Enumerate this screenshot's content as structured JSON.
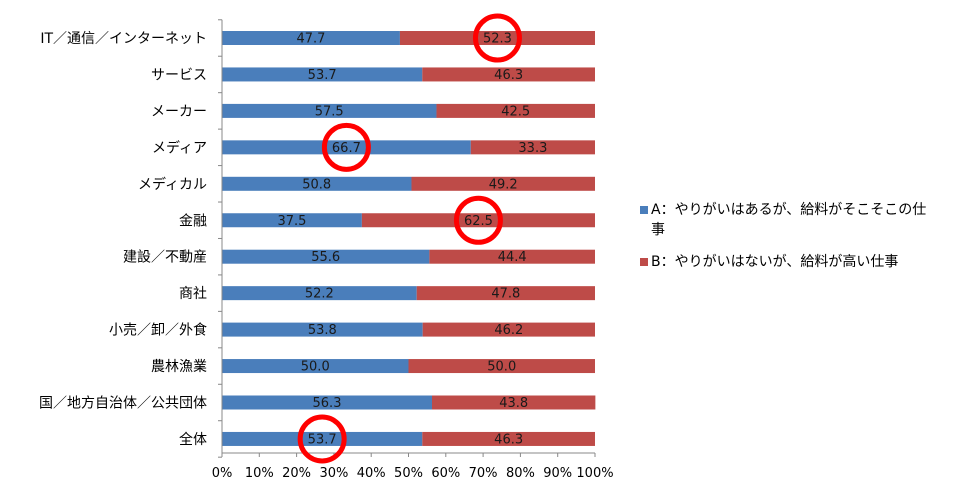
{
  "chart_data": {
    "type": "bar",
    "orientation": "horizontal",
    "stacked": "100%",
    "categories": [
      "IT／通信／インターネット",
      "サービス",
      "メーカー",
      "メディア",
      "メディカル",
      "金融",
      "建設／不動産",
      "商社",
      "小売／卸／外食",
      "農林漁業",
      "国／地方自治体／公共団体",
      "全体"
    ],
    "series": [
      {
        "name": "A：やりがいはあるが、給料がそこそこの仕事",
        "color": "#4a7ebb",
        "values": [
          47.7,
          53.7,
          57.5,
          66.7,
          50.8,
          37.5,
          55.6,
          52.2,
          53.8,
          50.0,
          56.3,
          53.7
        ],
        "labels": [
          "47.7",
          "53.7",
          "57.5",
          "66.7",
          "50.8",
          "37.5",
          "55.6",
          "52.2",
          "53.8",
          "50.0",
          "56.3",
          "53.7"
        ]
      },
      {
        "name": "B：やりがいはないが、給料が高い仕事",
        "color": "#be4b48",
        "values": [
          52.3,
          46.3,
          42.5,
          33.3,
          49.2,
          62.5,
          44.4,
          47.8,
          46.2,
          50.0,
          43.8,
          46.3
        ],
        "labels": [
          "52.3",
          "46.3",
          "42.5",
          "33.3",
          "49.2",
          "62.5",
          "44.4",
          "47.8",
          "46.2",
          "50.0",
          "43.8",
          "46.3"
        ]
      }
    ],
    "x_ticks": [
      "0%",
      "10%",
      "20%",
      "30%",
      "40%",
      "50%",
      "60%",
      "70%",
      "80%",
      "90%",
      "100%"
    ],
    "xlim": [
      0,
      100
    ],
    "grid": false,
    "legend_position": "right",
    "highlights": [
      {
        "category": "IT／通信／インターネット",
        "series": "B：やりがいはないが、給料が高い仕事"
      },
      {
        "category": "メディア",
        "series": "A：やりがいはあるが、給料がそこそこの仕事"
      },
      {
        "category": "金融",
        "series": "B：やりがいはないが、給料が高い仕事"
      },
      {
        "category": "全体",
        "series": "A：やりがいはあるが、給料がそこそこの仕事"
      }
    ],
    "highlight_color": "#ff0000"
  },
  "legend": {
    "items": [
      {
        "label": "A：やりがいはあるが、給料がそこそこの仕事",
        "color": "#4a7ebb"
      },
      {
        "label": "B：やりがいはないが、給料が高い仕事",
        "color": "#be4b48"
      }
    ]
  }
}
